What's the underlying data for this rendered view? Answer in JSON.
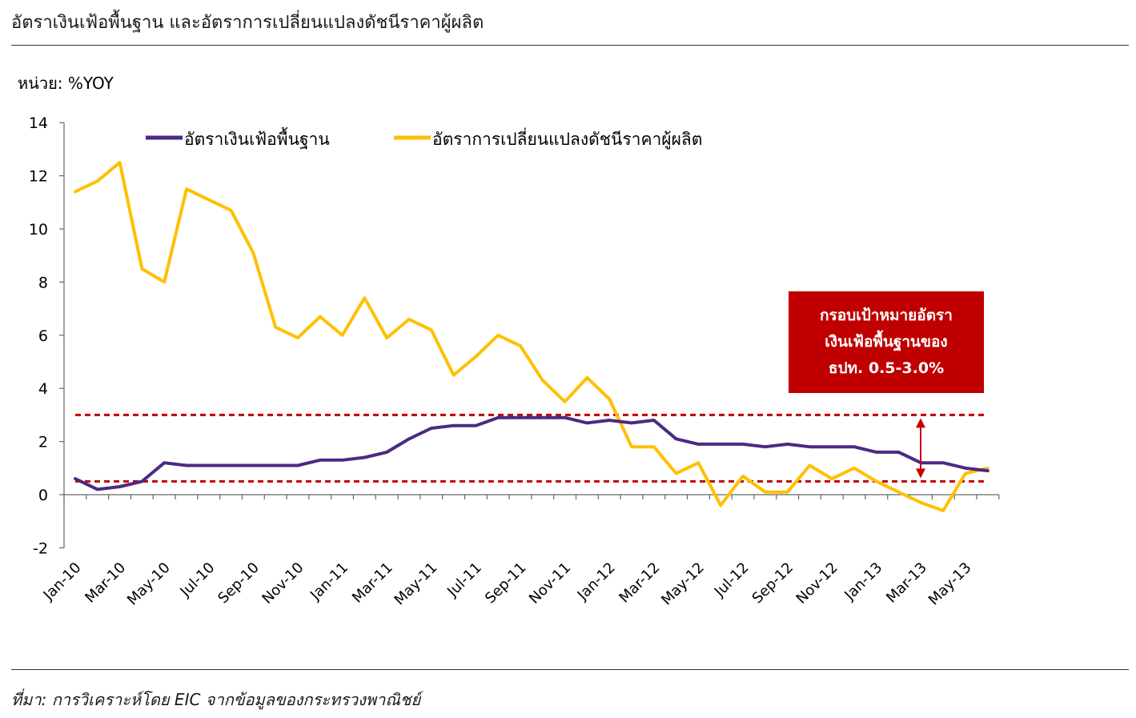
{
  "title": "อัตราเงินเฟ้อพื้นฐาน และอัตราการเปลี่ยนแปลงดัชนีราคาผู้ผลิต",
  "unit_label": "หน่วย: %YOY",
  "source": "ที่มา: การวิเคราะห์โดย EIC จากข้อมูลของกระทรวงพาณิชย์",
  "target_box": {
    "lines": [
      "กรอบเป้าหมายอัตรา",
      "เงินเฟ้อพื้นฐานของ",
      "ธปท. 0.5-3.0%"
    ]
  },
  "colors": {
    "core": "#4b2a83",
    "ppi": "#ffc000",
    "target": "#c00000"
  },
  "chart_data": {
    "type": "line",
    "ylim": [
      -2,
      14
    ],
    "yticks": [
      -2,
      0,
      2,
      4,
      6,
      8,
      10,
      12,
      14
    ],
    "x": [
      "Jan-10",
      "Feb-10",
      "Mar-10",
      "Apr-10",
      "May-10",
      "Jun-10",
      "Jul-10",
      "Aug-10",
      "Sep-10",
      "Oct-10",
      "Nov-10",
      "Dec-10",
      "Jan-11",
      "Feb-11",
      "Mar-11",
      "Apr-11",
      "May-11",
      "Jun-11",
      "Jul-11",
      "Aug-11",
      "Sep-11",
      "Oct-11",
      "Nov-11",
      "Dec-11",
      "Jan-12",
      "Feb-12",
      "Mar-12",
      "Apr-12",
      "May-12",
      "Jun-12",
      "Jul-12",
      "Aug-12",
      "Sep-12",
      "Oct-12",
      "Nov-12",
      "Dec-12",
      "Jan-13",
      "Feb-13",
      "Mar-13",
      "Apr-13",
      "May-13",
      "Jun-13"
    ],
    "xtick_labels": [
      "Jan-10",
      "Mar-10",
      "May-10",
      "Jul-10",
      "Sep-10",
      "Nov-10",
      "Jan-11",
      "Mar-11",
      "May-11",
      "Jul-11",
      "Sep-11",
      "Nov-11",
      "Jan-12",
      "Mar-12",
      "May-12",
      "Jul-12",
      "Sep-12",
      "Nov-12",
      "Jan-13",
      "Mar-13",
      "May-13"
    ],
    "series": [
      {
        "name": "อัตราเงินเฟ้อพื้นฐาน",
        "values": [
          0.6,
          0.2,
          0.3,
          0.5,
          1.2,
          1.1,
          1.1,
          1.1,
          1.1,
          1.1,
          1.1,
          1.3,
          1.3,
          1.4,
          1.6,
          2.1,
          2.5,
          2.6,
          2.6,
          2.9,
          2.9,
          2.9,
          2.9,
          2.7,
          2.8,
          2.7,
          2.8,
          2.1,
          1.9,
          1.9,
          1.9,
          1.8,
          1.9,
          1.8,
          1.8,
          1.8,
          1.6,
          1.6,
          1.2,
          1.2,
          1.0,
          0.9
        ]
      },
      {
        "name": "อัตราการเปลี่ยนแปลงดัชนีราคาผู้ผลิต",
        "values": [
          11.4,
          11.8,
          12.5,
          8.5,
          8.0,
          11.5,
          11.1,
          10.7,
          9.1,
          6.3,
          5.9,
          6.7,
          6.0,
          7.4,
          5.9,
          6.6,
          6.2,
          4.5,
          5.2,
          6.0,
          5.6,
          4.3,
          3.5,
          4.4,
          3.6,
          1.8,
          1.8,
          0.8,
          1.2,
          -0.4,
          0.7,
          0.1,
          0.1,
          1.1,
          0.6,
          1.0,
          0.5,
          0.1,
          -0.3,
          -0.6,
          0.8,
          1.0
        ]
      }
    ],
    "target_lines": [
      3.0,
      0.5
    ],
    "legend_position": "top"
  }
}
